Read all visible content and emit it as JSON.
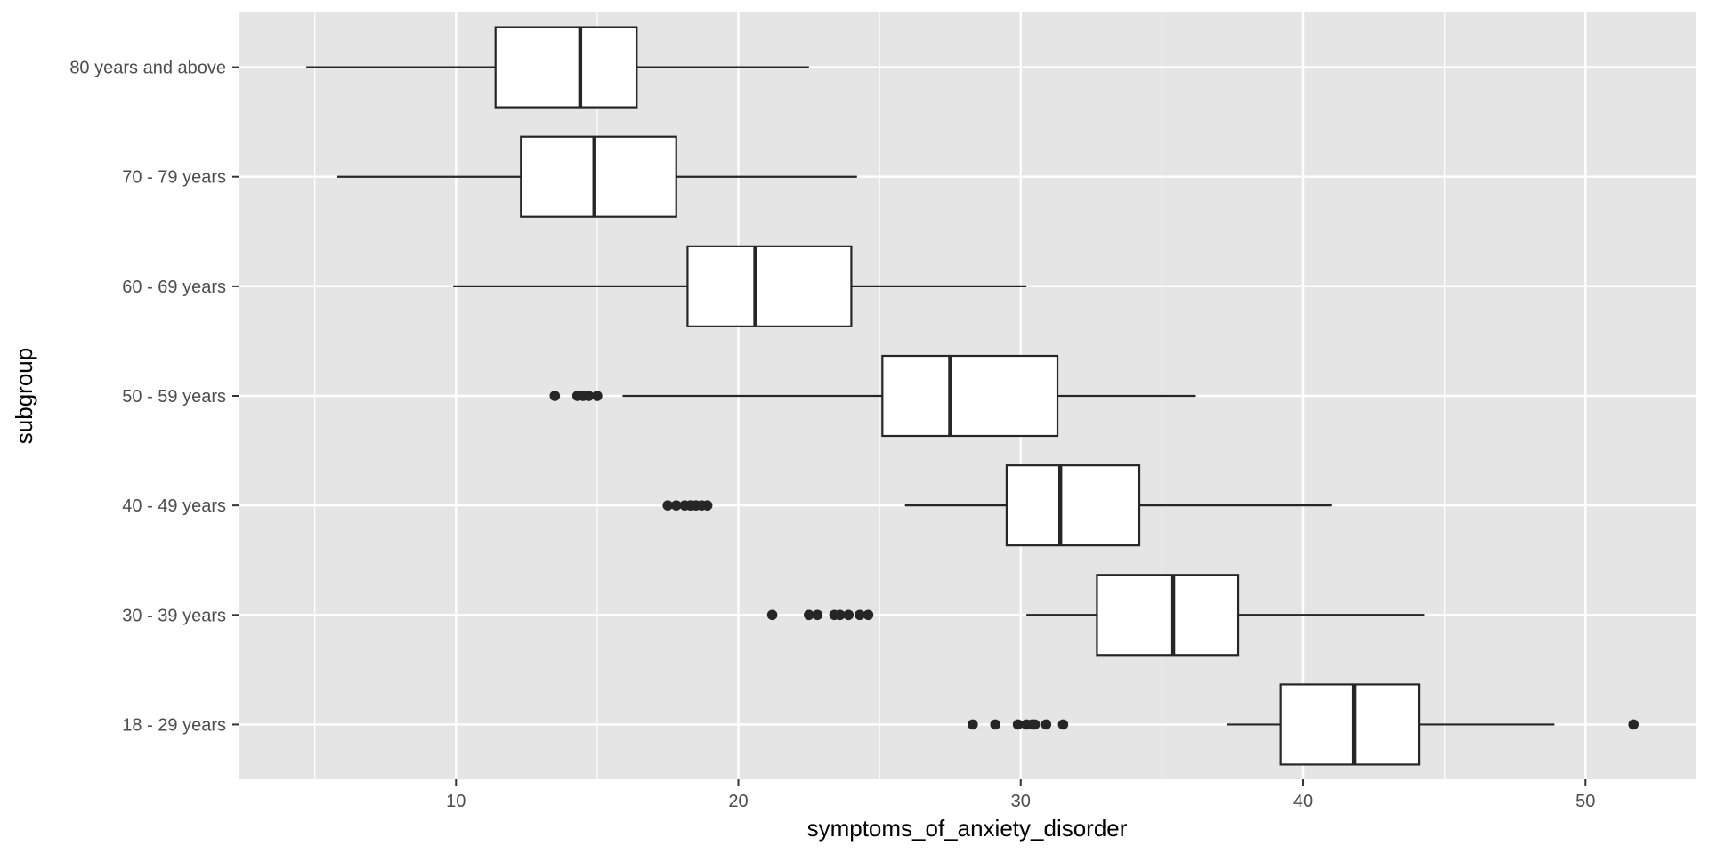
{
  "chart_data": {
    "type": "boxplot",
    "title": "",
    "xlabel": "symptoms_of_anxiety_disorder",
    "ylabel": "subgroup",
    "xlim": [
      2.3,
      53.9
    ],
    "x_ticks": [
      10,
      20,
      30,
      40,
      50
    ],
    "orientation": "horizontal",
    "grid": true,
    "panel_background": "#e5e5e5",
    "grid_color": "#ffffff",
    "box_fill": "#ffffff",
    "line_color": "#262626",
    "categories": [
      "80 years and above",
      "70 - 79 years",
      "60 - 69 years",
      "50 - 59 years",
      "40 - 49 years",
      "30 - 39 years",
      "18 - 29 years"
    ],
    "boxes": [
      {
        "category": "80 years and above",
        "whisker_low": 4.7,
        "q1": 11.4,
        "median": 14.4,
        "q3": 16.4,
        "whisker_high": 22.5,
        "outliers": []
      },
      {
        "category": "70 - 79 years",
        "whisker_low": 5.8,
        "q1": 12.3,
        "median": 14.9,
        "q3": 17.8,
        "whisker_high": 24.2,
        "outliers": []
      },
      {
        "category": "60 - 69 years",
        "whisker_low": 9.9,
        "q1": 18.2,
        "median": 20.6,
        "q3": 24.0,
        "whisker_high": 30.2,
        "outliers": []
      },
      {
        "category": "50 - 59 years",
        "whisker_low": 15.9,
        "q1": 25.1,
        "median": 27.5,
        "q3": 31.3,
        "whisker_high": 36.2,
        "outliers": [
          13.5,
          14.3,
          14.5,
          14.7,
          15.0
        ]
      },
      {
        "category": "40 - 49 years",
        "whisker_low": 25.9,
        "q1": 29.5,
        "median": 31.4,
        "q3": 34.2,
        "whisker_high": 41.0,
        "outliers": [
          17.5,
          17.8,
          18.1,
          18.3,
          18.5,
          18.7,
          18.9
        ]
      },
      {
        "category": "30 - 39 years",
        "whisker_low": 30.2,
        "q1": 32.7,
        "median": 35.4,
        "q3": 37.7,
        "whisker_high": 44.3,
        "outliers": [
          21.2,
          22.5,
          22.8,
          23.4,
          23.6,
          23.9,
          24.3,
          24.6
        ]
      },
      {
        "category": "18 - 29 years",
        "whisker_low": 37.3,
        "q1": 39.2,
        "median": 41.8,
        "q3": 44.1,
        "whisker_high": 48.9,
        "outliers": [
          28.3,
          29.1,
          29.9,
          30.2,
          30.4,
          30.5,
          30.9,
          31.5,
          51.7
        ]
      }
    ]
  }
}
